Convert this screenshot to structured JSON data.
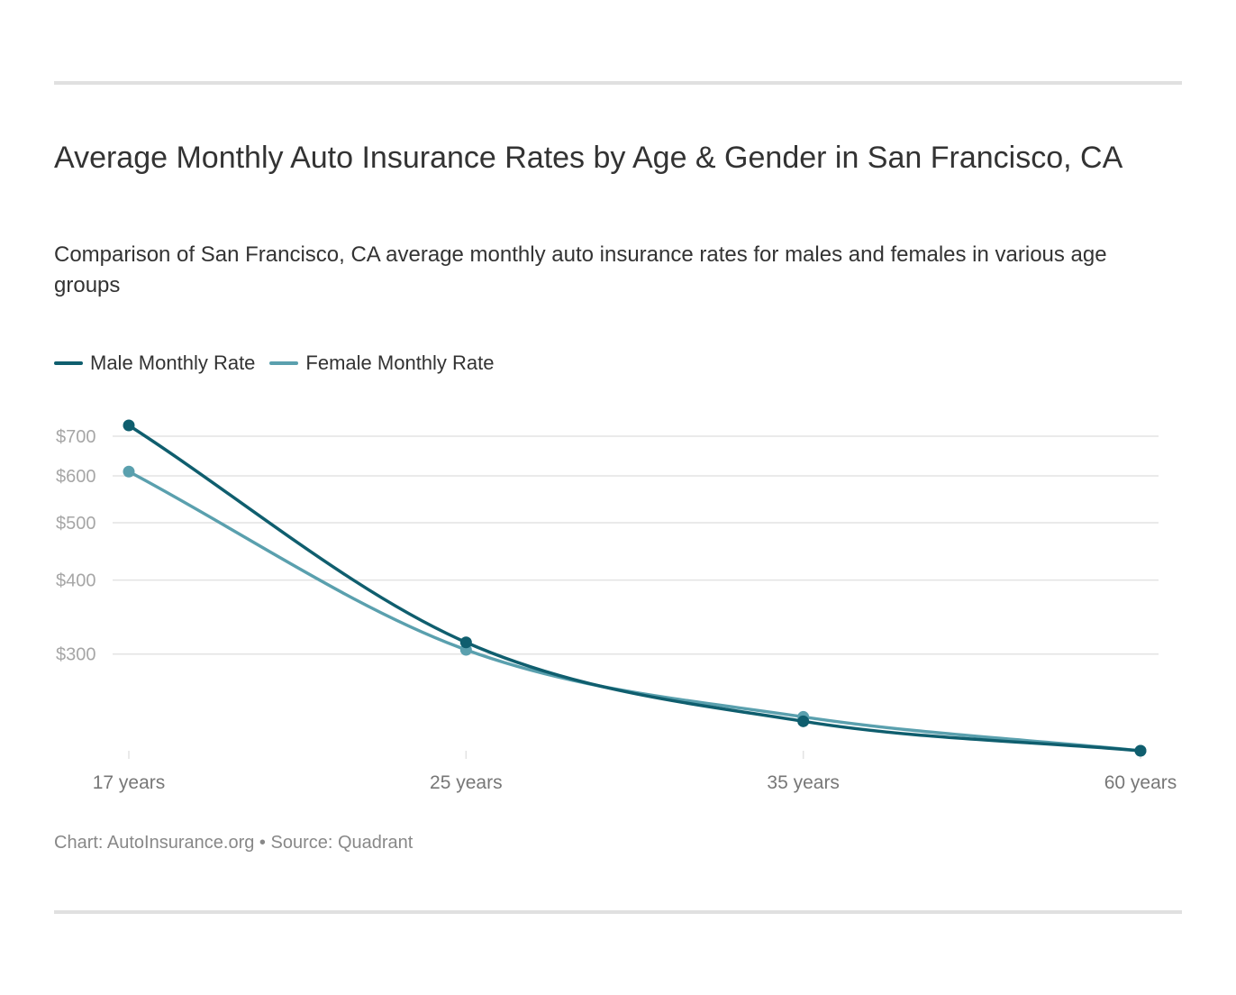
{
  "title": "Average Monthly Auto Insurance Rates by Age & Gender in San Francisco, CA",
  "subtitle": "Comparison of San Francisco, CA average monthly auto insurance rates for males and females in various age groups",
  "footer": {
    "chart_label": "Chart: AutoInsurance.org",
    "separator": " • ",
    "source_label": "Source: Quadrant"
  },
  "colors": {
    "male": "#0f5e6e",
    "female": "#5aa0ae",
    "grid": "#e3e3e3",
    "tick_text": "#a6a6a6",
    "axis_text": "#777777"
  },
  "chart_data": {
    "type": "line",
    "title": "Average Monthly Auto Insurance Rates by Age & Gender in San Francisco, CA",
    "categories": [
      "17 years",
      "25 years",
      "35 years",
      "60 years"
    ],
    "series": [
      {
        "name": "Male Monthly Rate",
        "values": [
          730,
          314,
          231,
          206
        ]
      },
      {
        "name": "Female Monthly Rate",
        "values": [
          610,
          305,
          235,
          206
        ]
      }
    ],
    "y_scale": "log",
    "y_ticks": [
      300,
      400,
      500,
      600,
      700
    ],
    "y_tick_labels": [
      "$300",
      "$400",
      "$500",
      "$600",
      "$700"
    ],
    "ylim": [
      206,
      730
    ],
    "xlabel": "",
    "ylabel": "",
    "grid": true,
    "legend": "top-left"
  }
}
